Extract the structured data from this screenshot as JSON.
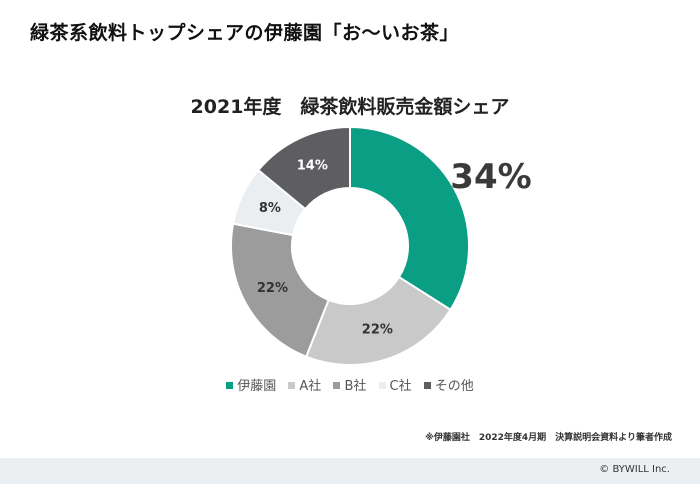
{
  "slide": {
    "title": "緑茶系飲料トップシェアの伊藤園「お～いお茶」",
    "source_note": "※伊藤園社　2022年度4月期　決算説明会資料より筆者作成",
    "copyright": "© BYWILL Inc."
  },
  "chart_data": {
    "type": "pie",
    "donut": true,
    "title": "2021年度　緑茶飲料販売金額シェア",
    "legend_position": "bottom",
    "categories": [
      "伊藤園",
      "A社",
      "B社",
      "C社",
      "その他"
    ],
    "values": [
      34,
      22,
      22,
      8,
      14
    ],
    "labels": [
      "34%",
      "22%",
      "22%",
      "8%",
      "14%"
    ],
    "colors": [
      "#0a9e85",
      "#c9c9c9",
      "#9c9c9c",
      "#eaeef1",
      "#5e5e62"
    ],
    "label_colors": [
      "#333333",
      "#333333",
      "#333333",
      "#333333",
      "#ffffff"
    ]
  }
}
